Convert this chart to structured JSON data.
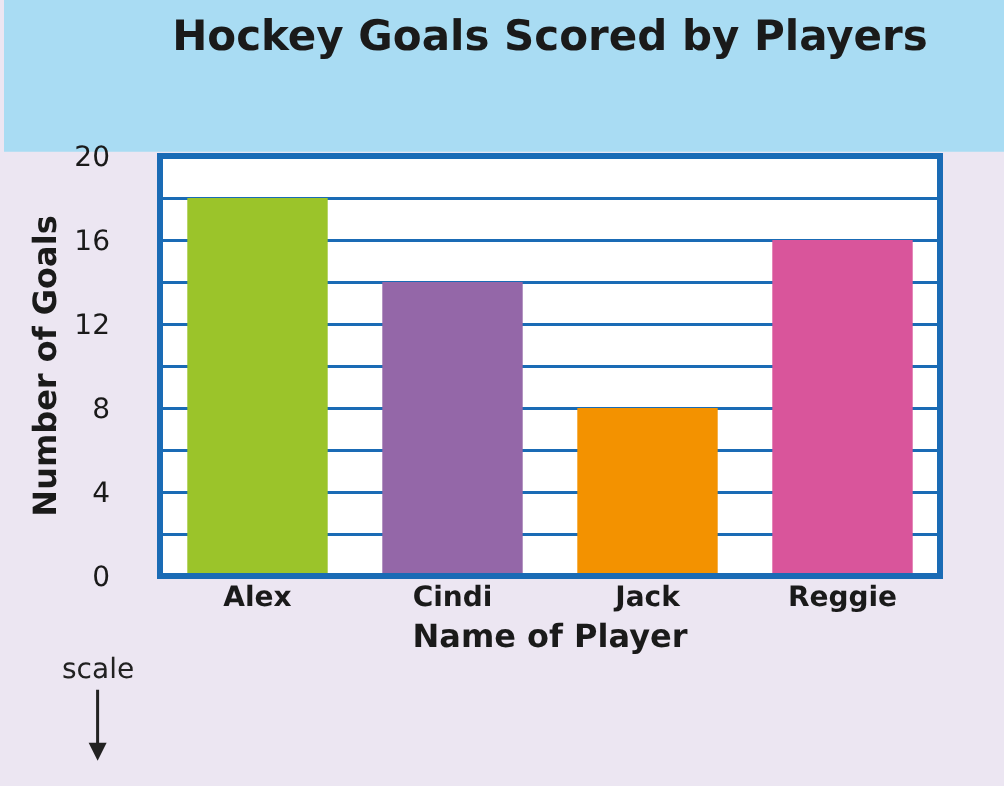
{
  "chart_data": {
    "type": "bar",
    "title": "Hockey Goals Scored by Players",
    "xlabel": "Name of Player",
    "ylabel": "Number of Goals",
    "categories": [
      "Alex",
      "Cindi",
      "Jack",
      "Reggie"
    ],
    "values": [
      18,
      14,
      8,
      16
    ],
    "colors": [
      "#9bc42a",
      "#9467a8",
      "#f39200",
      "#d9559b"
    ],
    "ylim": [
      0,
      20
    ],
    "yticks": [
      0,
      {
        "value": 2,
        "label": null
      },
      4,
      {
        "value": 6,
        "label": null
      },
      8,
      {
        "value": 10,
        "label": null
      },
      12,
      {
        "value": 14,
        "label": null
      },
      16,
      {
        "value": 18,
        "label": null
      },
      20
    ],
    "grid": "y",
    "annotations": [
      "scale"
    ]
  }
}
